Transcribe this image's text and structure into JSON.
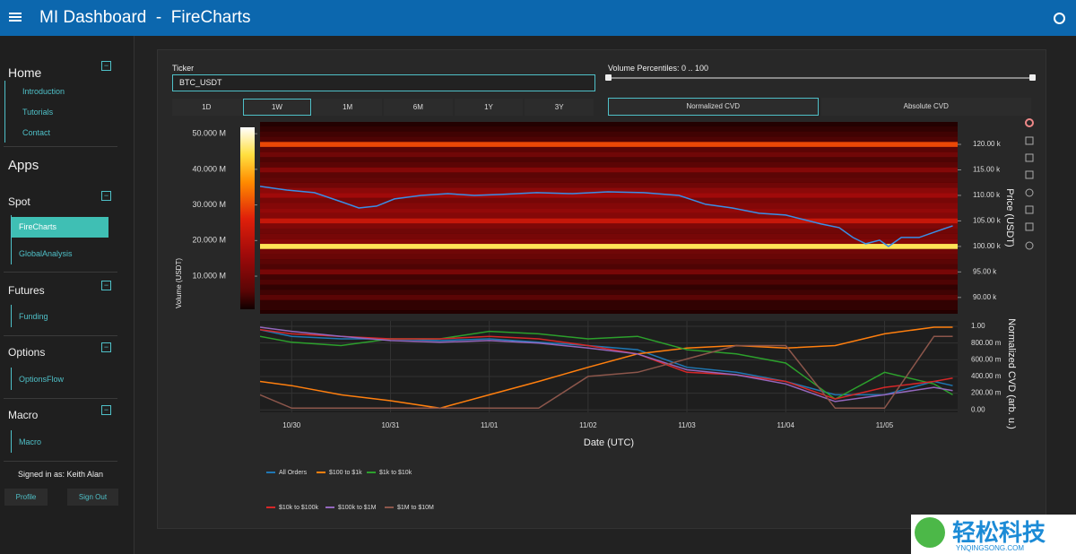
{
  "header": {
    "title": "MI Dashboard  -  FireCharts"
  },
  "sidebar": {
    "home": {
      "title": "Home",
      "links": [
        "Introduction",
        "Tutorials",
        "Contact"
      ]
    },
    "apps_title": "Apps",
    "sections": [
      {
        "title": "Spot",
        "links": [
          "FireCharts",
          "GlobalAnalysis"
        ]
      },
      {
        "title": "Futures",
        "links": [
          "Funding"
        ]
      },
      {
        "title": "Options",
        "links": [
          "OptionsFlow"
        ]
      },
      {
        "title": "Macro",
        "links": [
          "Macro"
        ]
      }
    ],
    "signed_in": "Signed in as: Keith Alan",
    "buttons": [
      "Profile",
      "Sign Out"
    ]
  },
  "controls": {
    "ticker_label": "Ticker",
    "ticker_value": "BTC_USDT",
    "ranges": [
      "1D",
      "1W",
      "1M",
      "6M",
      "1Y",
      "3Y"
    ],
    "selected_range_index": 1,
    "volume_label": "Volume Percentiles: 0 .. 100",
    "cvd_modes": [
      "Normalized CVD",
      "Absolute CVD"
    ],
    "selected_cvd_index": 0
  },
  "watermark": {
    "title": "轻松科技",
    "url": "YNQINGSONG.COM"
  },
  "chart_data": [
    {
      "type": "heatmap",
      "y_label": "Price (USDT)",
      "colorbar_label": "Volume (USDT)",
      "xlim": [
        -0.32,
        6.74
      ],
      "ylim": [
        86800,
        124400
      ],
      "yticks": [
        {
          "value": 90000,
          "label": "90.00 k"
        },
        {
          "value": 95000,
          "label": "95.00 k"
        },
        {
          "value": 100000,
          "label": "100.00 k"
        },
        {
          "value": 105000,
          "label": "105.00 k"
        },
        {
          "value": 110000,
          "label": "110.00 k"
        },
        {
          "value": 115000,
          "label": "115.00 k"
        },
        {
          "value": 120000,
          "label": "120.00 k"
        }
      ],
      "clim": [
        700000,
        51800000
      ],
      "cticks": [
        {
          "value": 10000000,
          "label": "10.000 M"
        },
        {
          "value": 20000000,
          "label": "20.000 M"
        },
        {
          "value": 30000000,
          "label": "30.000 M"
        },
        {
          "value": 40000000,
          "label": "40.000 M"
        },
        {
          "value": 50000000,
          "label": "50.000 M"
        }
      ],
      "levels": [
        87000,
        88000,
        89000,
        90000,
        91000,
        92000,
        93000,
        94000,
        95000,
        96000,
        97000,
        98000,
        99000,
        100000,
        101000,
        102000,
        103000,
        104000,
        105000,
        106000,
        107000,
        108000,
        109000,
        110000,
        111000,
        112000,
        113000,
        114000,
        115000,
        116000,
        117000,
        118000,
        119000,
        120000,
        121000,
        122000,
        123000,
        124000
      ],
      "volumes": [
        2000000,
        3000000,
        3000000,
        6000000,
        4000000,
        3000000,
        5000000,
        4000000,
        10000000,
        5000000,
        6000000,
        8000000,
        9000000,
        45000000,
        12000000,
        10000000,
        9000000,
        11000000,
        22000000,
        12000000,
        14000000,
        12000000,
        10000000,
        16000000,
        13000000,
        9000000,
        7000000,
        6000000,
        12000000,
        6000000,
        5000000,
        9000000,
        6000000,
        30000000,
        5000000,
        4000000,
        3000000,
        2000000
      ],
      "line": {
        "color": "#3a8ee6",
        "x": [
          -0.32,
          -0.05,
          0.23,
          0.5,
          0.68,
          0.86,
          1.04,
          1.31,
          1.58,
          1.85,
          2.12,
          2.48,
          2.84,
          3.2,
          3.56,
          3.92,
          4.19,
          4.46,
          4.73,
          5.0,
          5.18,
          5.36,
          5.54,
          5.68,
          5.81,
          5.95,
          6.04,
          6.17,
          6.35,
          6.53,
          6.69
        ],
        "values": [
          111760,
          111050,
          110530,
          108770,
          107540,
          107900,
          109300,
          110000,
          110350,
          110000,
          110180,
          110530,
          110350,
          110700,
          110530,
          110000,
          108250,
          107540,
          106490,
          106140,
          105260,
          104390,
          103690,
          101760,
          100530,
          101230,
          100000,
          101760,
          101760,
          102980,
          104040
        ]
      }
    },
    {
      "type": "line",
      "x_label": "Date (UTC)",
      "y_label": "Normalized CVD (arb. u.)",
      "xlim": [
        -0.32,
        6.74
      ],
      "xticks": [
        {
          "value": 0,
          "label": "10/30"
        },
        {
          "value": 1,
          "label": "10/31"
        },
        {
          "value": 2,
          "label": "11/01"
        },
        {
          "value": 3,
          "label": "11/02"
        },
        {
          "value": 4,
          "label": "11/03"
        },
        {
          "value": 5,
          "label": "11/04"
        },
        {
          "value": 6,
          "label": "11/05"
        }
      ],
      "ylim": [
        -0.03,
        1.065
      ],
      "yticks": [
        {
          "value": 0,
          "label": "0.00"
        },
        {
          "value": 0.2,
          "label": "200.00 m"
        },
        {
          "value": 0.4,
          "label": "400.00 m"
        },
        {
          "value": 0.6,
          "label": "600.00 m"
        },
        {
          "value": 0.8,
          "label": "800.00 m"
        },
        {
          "value": 1,
          "label": "1.00"
        }
      ],
      "grid": true,
      "x": [
        -0.32,
        0,
        0.5,
        1,
        1.5,
        2,
        2.5,
        3,
        3.5,
        4,
        4.5,
        5,
        5.5,
        6,
        6.5,
        6.69
      ],
      "series": [
        {
          "name": "All Orders",
          "color": "#1f77b4",
          "values": [
            0.96,
            0.88,
            0.85,
            0.85,
            0.83,
            0.85,
            0.81,
            0.77,
            0.72,
            0.51,
            0.45,
            0.34,
            0.18,
            0.18,
            0.34,
            0.29
          ]
        },
        {
          "name": "$100 to $1k",
          "color": "#ff7f0e",
          "values": [
            0.34,
            0.29,
            0.18,
            0.11,
            0.02,
            0.18,
            0.34,
            0.51,
            0.67,
            0.74,
            0.77,
            0.74,
            0.77,
            0.91,
            0.99,
            0.99
          ]
        },
        {
          "name": "$1k to $10k",
          "color": "#2ca02c",
          "values": [
            0.88,
            0.81,
            0.77,
            0.85,
            0.85,
            0.94,
            0.91,
            0.85,
            0.88,
            0.72,
            0.67,
            0.56,
            0.13,
            0.45,
            0.31,
            0.18
          ]
        },
        {
          "name": "$10k to $100k",
          "color": "#d62728",
          "values": [
            0.96,
            0.91,
            0.88,
            0.85,
            0.85,
            0.88,
            0.85,
            0.77,
            0.67,
            0.45,
            0.42,
            0.34,
            0.13,
            0.27,
            0.34,
            0.38
          ]
        },
        {
          "name": "$100k to $1M",
          "color": "#9467bd",
          "values": [
            0.99,
            0.94,
            0.88,
            0.83,
            0.81,
            0.83,
            0.8,
            0.74,
            0.67,
            0.48,
            0.42,
            0.31,
            0.1,
            0.18,
            0.27,
            0.23
          ]
        },
        {
          "name": "$1M to $10M",
          "color": "#8c564b",
          "values": [
            0.18,
            0.02,
            0.02,
            0.02,
            0.02,
            0.02,
            0.02,
            0.4,
            0.45,
            0.61,
            0.77,
            0.77,
            0.02,
            0.02,
            0.88,
            0.88
          ]
        }
      ]
    }
  ]
}
